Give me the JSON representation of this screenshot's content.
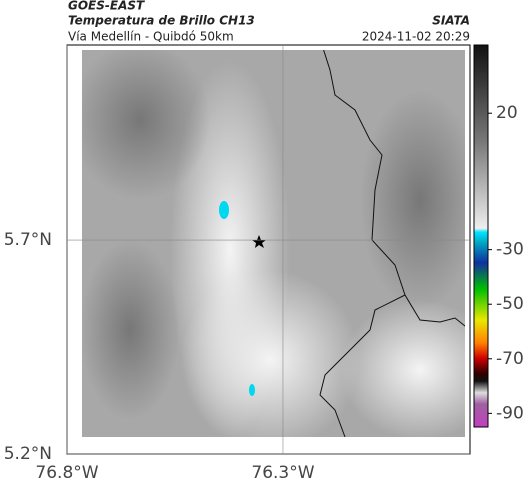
{
  "header": {
    "satellite": "GOES-EAST",
    "product": "Temperatura de Brillo CH13",
    "route": "Vía Medellín - Quibdó 50km",
    "source": "SIATA",
    "datetime": "2024-11-02 20:29"
  },
  "map": {
    "xlim": [
      -76.8,
      -75.867
    ],
    "ylim": [
      5.2,
      6.156
    ],
    "xticks": [
      {
        "value": -76.8,
        "label": "76.8°W"
      },
      {
        "value": -76.3,
        "label": "76.3°W"
      }
    ],
    "yticks": [
      {
        "value": 5.7,
        "label": "5.7°N"
      },
      {
        "value": 5.2,
        "label": "5.2°N"
      }
    ]
  },
  "colorbar": {
    "lim": [
      45,
      -95
    ],
    "ticks": [
      20,
      -30,
      -50,
      -70,
      -90
    ]
  }
}
